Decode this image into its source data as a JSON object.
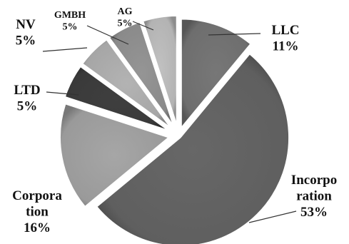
{
  "chart_data": {
    "type": "pie",
    "title": "",
    "unit": "%",
    "slices": [
      {
        "label_lines": [
          "LLC"
        ],
        "value": 11,
        "display": "11%",
        "color": "#6e6e6e"
      },
      {
        "label_lines": [
          "Incorpo",
          "ration"
        ],
        "value": 53,
        "display": "53%",
        "color": "#5f5f5f"
      },
      {
        "label_lines": [
          "Corpora",
          "tion"
        ],
        "value": 16,
        "display": "16%",
        "color": "#9a9a9a"
      },
      {
        "label_lines": [
          "LTD"
        ],
        "value": 5,
        "display": "5%",
        "color": "#3a3a3a"
      },
      {
        "label_lines": [
          "NV"
        ],
        "value": 5,
        "display": "5%",
        "color": "#a6a6a6"
      },
      {
        "label_lines": [
          "GMBH"
        ],
        "value": 5,
        "display": "5%",
        "color": "#8a8a8a"
      },
      {
        "label_lines": [
          "AG"
        ],
        "value": 5,
        "display": "5%",
        "color": "#b3b3b3"
      }
    ],
    "start_angle_deg": 90,
    "direction": "clockwise",
    "exploded": true,
    "legend": "none",
    "style": "3d-shaded"
  }
}
